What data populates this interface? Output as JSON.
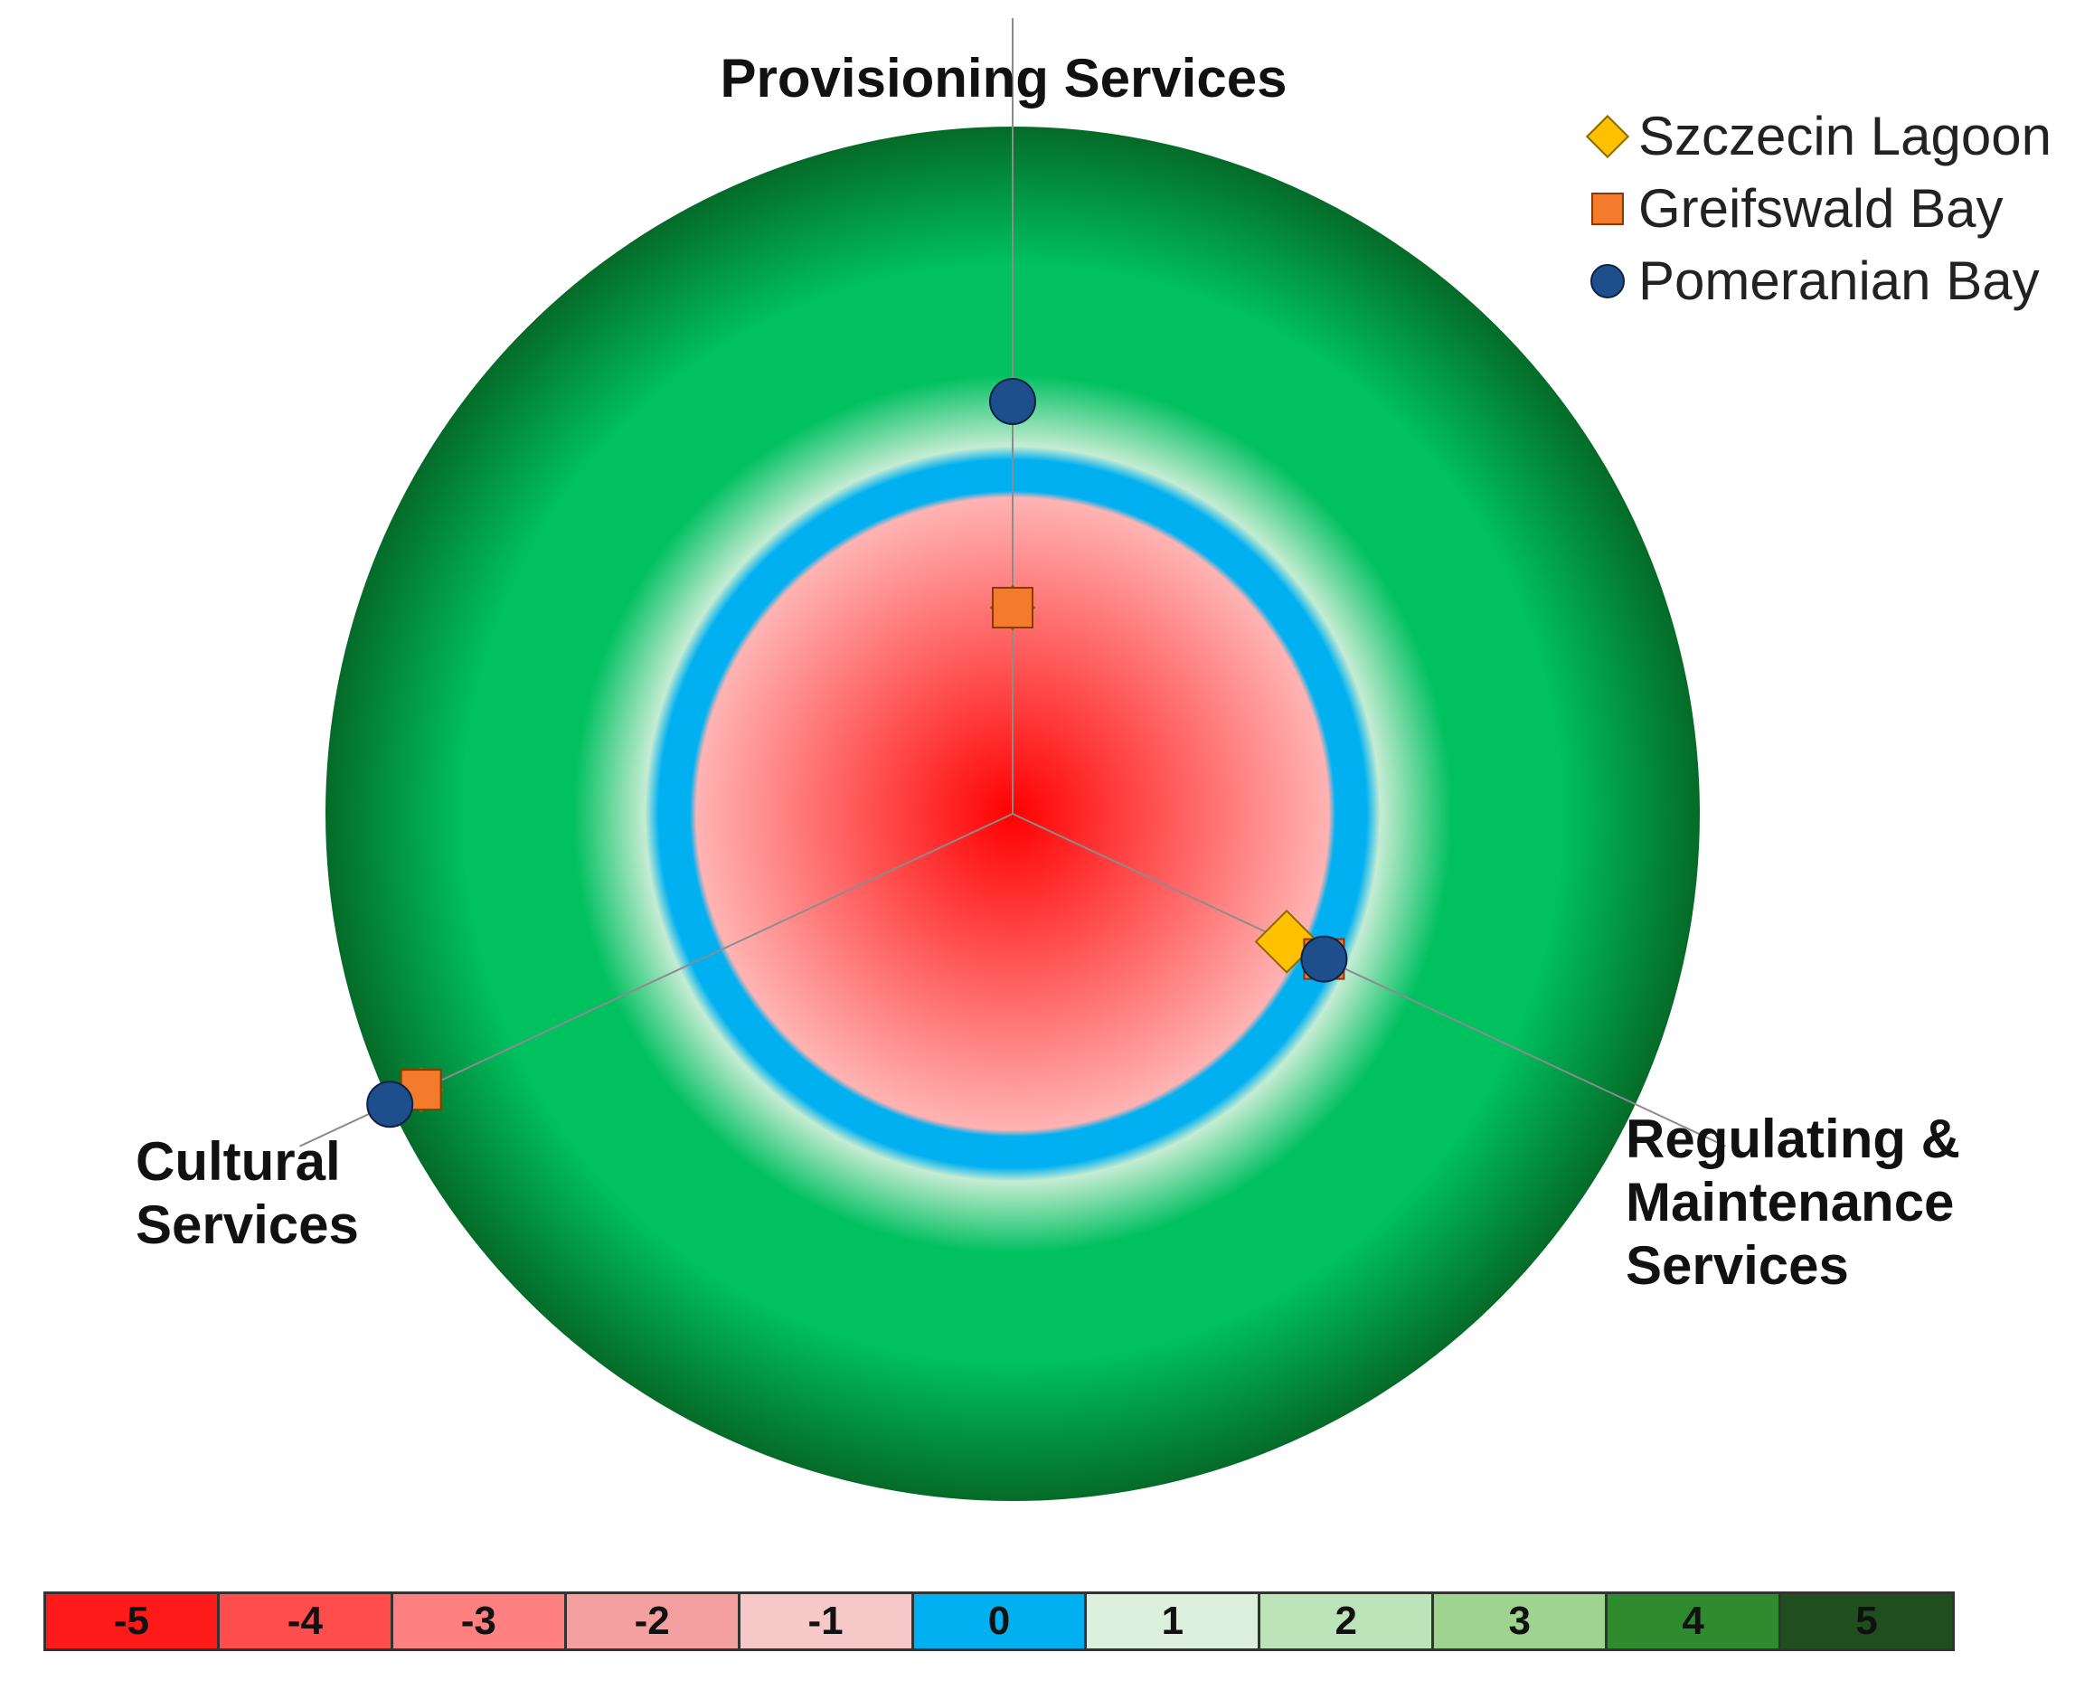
{
  "chart_data": {
    "type": "radar",
    "axes": [
      {
        "key": "provisioning",
        "label_lines": [
          "Provisioning Services"
        ]
      },
      {
        "key": "regulating",
        "label_lines": [
          "Regulating &",
          "Maintenance",
          "Services"
        ]
      },
      {
        "key": "cultural",
        "label_lines": [
          "Cultural",
          "Services"
        ]
      }
    ],
    "range": [
      -5,
      5
    ],
    "series": [
      {
        "name": "Szczecin Lagoon",
        "marker": "diamond",
        "color": "#ffc000",
        "values": {
          "provisioning": -2,
          "regulating": -0.6,
          "cultural": 4.5
        }
      },
      {
        "name": "Greifswald Bay",
        "marker": "square",
        "color": "#f47b2b",
        "values": {
          "provisioning": -2,
          "regulating": 0,
          "cultural": 4.5
        }
      },
      {
        "name": "Pomeranian Bay",
        "marker": "circle",
        "color": "#1f4e8c",
        "values": {
          "provisioning": 1,
          "regulating": 0,
          "cultural": 5
        }
      }
    ],
    "color_scale": [
      {
        "value": "-5",
        "color": "#ff1a1a"
      },
      {
        "value": "-4",
        "color": "#ff4d4d"
      },
      {
        "value": "-3",
        "color": "#ff8080"
      },
      {
        "value": "-2",
        "color": "#f4a0a0"
      },
      {
        "value": "-1",
        "color": "#f7c8c8"
      },
      {
        "value": "0",
        "color": "#00b0f0"
      },
      {
        "value": "1",
        "color": "#ddf0dd"
      },
      {
        "value": "2",
        "color": "#bde3b8"
      },
      {
        "value": "3",
        "color": "#9fd490"
      },
      {
        "value": "4",
        "color": "#2e8b2e"
      },
      {
        "value": "5",
        "color": "#1f4f1f"
      }
    ],
    "background": {
      "negative_center": "#ff0000",
      "negative_edge": "#ffb3b3",
      "zero_ring": "#00b0f0",
      "positive_inner": "#00c060",
      "positive_outer": "#046b28"
    },
    "legend_position": "top-right",
    "grid": false
  }
}
